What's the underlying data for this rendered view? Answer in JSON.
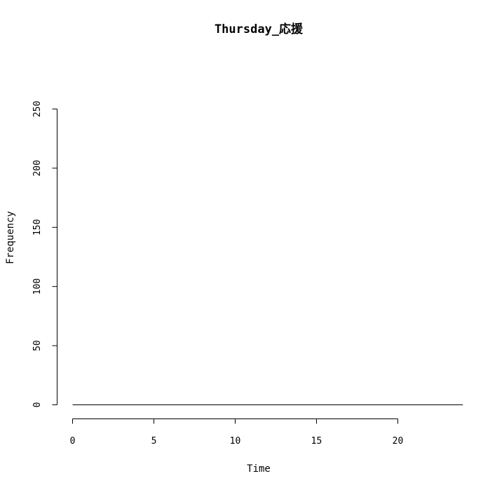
{
  "chart_data": {
    "type": "line",
    "title": "Thursday_応援",
    "xlabel": "Time",
    "ylabel": "Frequency",
    "xlim": [
      0,
      24
    ],
    "ylim": [
      0,
      250
    ],
    "x_ticks": [
      0,
      5,
      10,
      15,
      20
    ],
    "y_ticks": [
      0,
      50,
      100,
      150,
      200,
      250
    ],
    "x_tick_labels": [
      "0",
      "5",
      "10",
      "15",
      "20"
    ],
    "y_tick_labels": [
      "0",
      "50",
      "100",
      "150",
      "200",
      "250"
    ],
    "grid": false,
    "series": [
      {
        "x": [
          0,
          1,
          2,
          3,
          4,
          5,
          6,
          7,
          8,
          9,
          10,
          11,
          12,
          13,
          14,
          15,
          16,
          17,
          18,
          19,
          20,
          21,
          22,
          23,
          24
        ],
        "values": [
          0,
          0,
          0,
          0,
          0,
          0,
          0,
          0,
          0,
          0,
          0,
          0,
          0,
          0,
          0,
          0,
          0,
          0,
          0,
          0,
          0,
          0,
          0,
          0,
          0
        ]
      }
    ]
  }
}
